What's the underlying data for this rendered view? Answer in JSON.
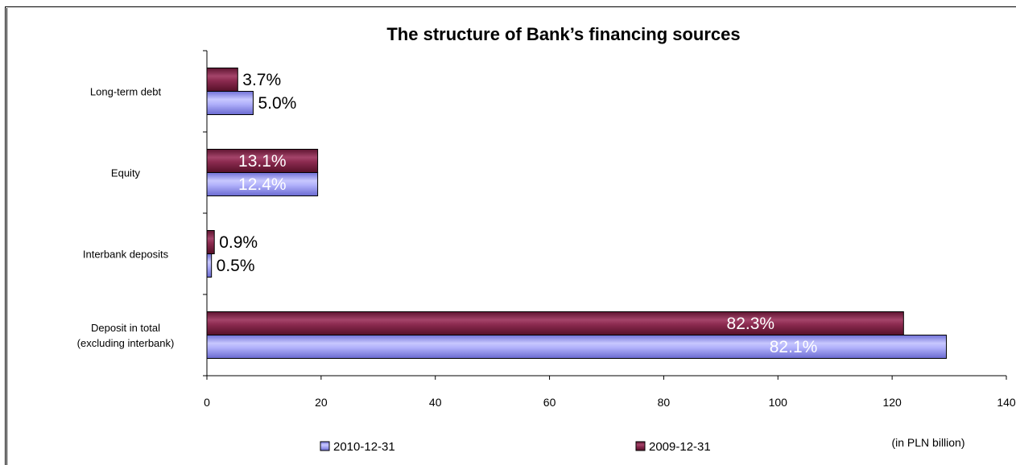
{
  "chart_data": {
    "type": "bar",
    "orientation": "horizontal",
    "title": "The structure of Bank’s financing sources",
    "categories": [
      [
        "Long-term debt"
      ],
      [
        "Equity"
      ],
      [
        "Interbank deposits"
      ],
      [
        "Deposit in total",
        "(excluding interbank)"
      ]
    ],
    "series": [
      {
        "name": "2009-12-31",
        "color": "#8b2a4f",
        "values": [
          5.4,
          19.4,
          1.3,
          122.0
        ],
        "labels": [
          "3.7%",
          "13.1%",
          "0.9%",
          "82.3%"
        ]
      },
      {
        "name": "2010-12-31",
        "color": "#9a9af0",
        "values": [
          8.1,
          19.4,
          0.8,
          129.5
        ],
        "labels": [
          "5.0%",
          "12.4%",
          "0.5%",
          "82.1%"
        ]
      }
    ],
    "xlabel": "(in PLN billion)",
    "xlim": [
      0,
      140
    ],
    "xticks": [
      "0",
      "20",
      "40",
      "60",
      "80",
      "100",
      "120",
      "140"
    ],
    "grid": false,
    "legend": {
      "placement": "bottom",
      "order": [
        "2010-12-31",
        "2009-12-31"
      ]
    }
  }
}
